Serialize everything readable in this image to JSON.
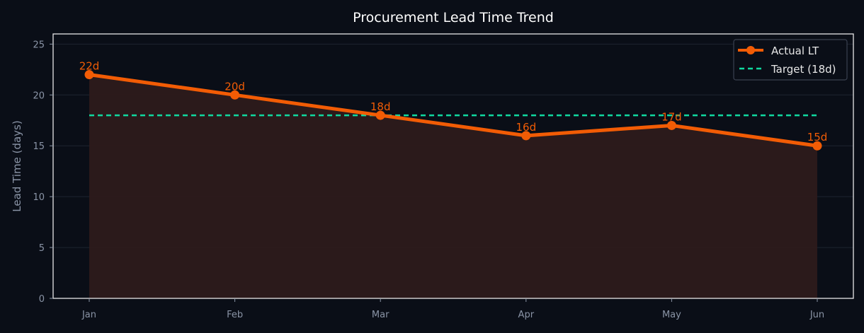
{
  "chart_data": {
    "type": "line",
    "title": "Procurement Lead Time Trend",
    "xlabel": "",
    "ylabel": "Lead Time (days)",
    "categories": [
      "Jan",
      "Feb",
      "Mar",
      "Apr",
      "May",
      "Jun"
    ],
    "series": [
      {
        "name": "Actual LT",
        "values": [
          22,
          20,
          18,
          16,
          17,
          15
        ],
        "labels": [
          "22d",
          "20d",
          "18d",
          "16d",
          "17d",
          "15d"
        ],
        "color": "#f25c05",
        "fill": true
      },
      {
        "name": "Target (18d)",
        "values": [
          18,
          18,
          18,
          18,
          18,
          18
        ],
        "color": "#10d9a0",
        "dashed": true
      }
    ],
    "ylim": [
      0,
      26
    ],
    "yticks": [
      0,
      5,
      10,
      15,
      20,
      25
    ],
    "grid": true,
    "legend": "top-right",
    "colors": {
      "background": "#0a0e17",
      "axes": "#e6e6e6",
      "tick": "#8a94a6",
      "grid": "#1e2430",
      "fill": "#2d1b1b"
    }
  }
}
